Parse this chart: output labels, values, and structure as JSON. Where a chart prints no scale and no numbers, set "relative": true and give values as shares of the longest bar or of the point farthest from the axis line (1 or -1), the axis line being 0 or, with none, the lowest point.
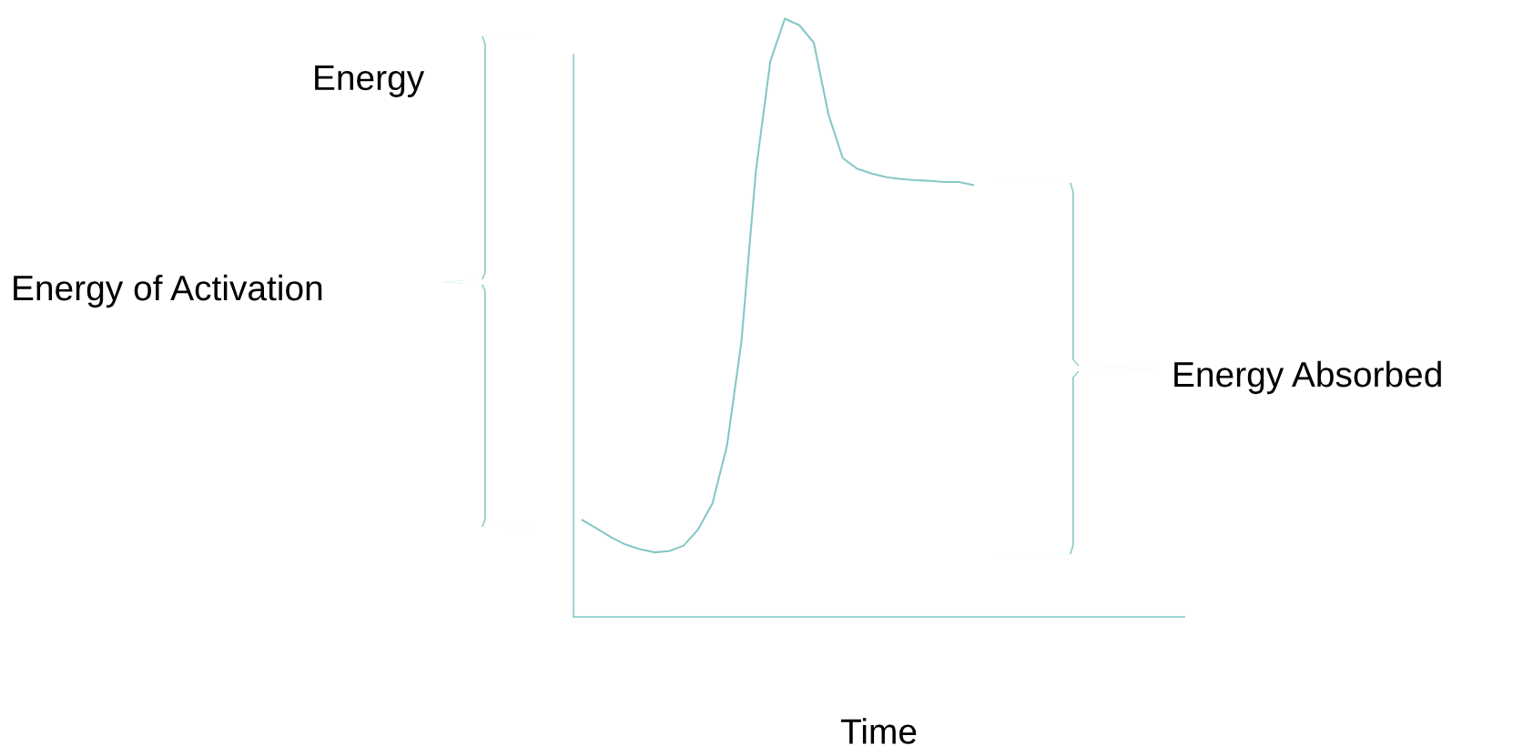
{
  "chart_data": {
    "type": "line",
    "relative": true,
    "xlabel": "Time",
    "ylabel": "Energy",
    "annotations": [
      "Energy of Activation",
      "Energy Absorbed"
    ],
    "categories": [
      null,
      null,
      null,
      null,
      null,
      null,
      null,
      null,
      null,
      null,
      null,
      null,
      null,
      null,
      null,
      null,
      null,
      null,
      null,
      null,
      null,
      null,
      null,
      null,
      null,
      null,
      null,
      null,
      null,
      null,
      null,
      null,
      null,
      null,
      null,
      null,
      null,
      null,
      null,
      null,
      null,
      null
    ],
    "series": [
      {
        "color": "#86c8c6",
        "values": [
          0.162,
          0.148,
          0.133,
          0.121,
          0.113,
          0.108,
          0.11,
          0.119,
          0.146,
          0.19,
          0.286,
          0.46,
          0.746,
          0.929,
          1.0,
          0.989,
          0.96,
          0.841,
          0.767,
          0.749,
          0.741,
          0.735,
          0.732,
          0.73,
          0.729,
          0.727,
          0.727,
          0.722,
          null,
          null,
          null,
          null,
          null,
          null,
          null,
          null,
          null,
          null,
          null,
          null,
          null,
          null
        ]
      }
    ],
    "grid": false,
    "legend": false,
    "marker": "none",
    "line_style": "solid",
    "tick_labels": false
  }
}
